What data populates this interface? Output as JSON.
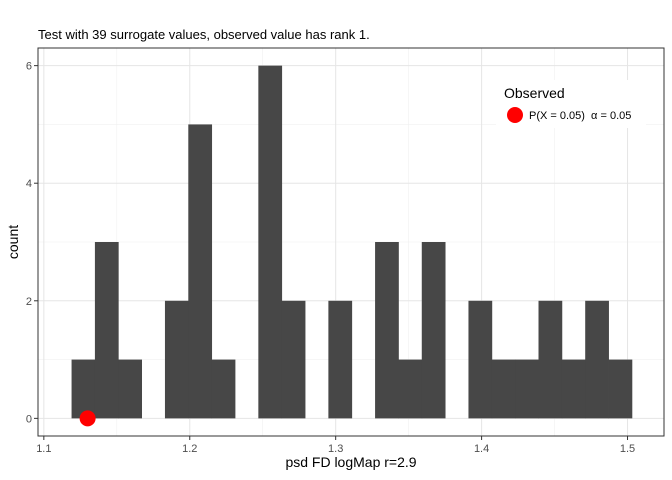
{
  "chart_data": {
    "type": "histogram",
    "title": "Test with 39 surrogate values, observed value has rank 1.",
    "xlabel": "psd FD logMap r=2.9",
    "ylabel": "count",
    "xlim": [
      1.096,
      1.525
    ],
    "ylim": [
      -0.3,
      6.3
    ],
    "x_ticks": [
      {
        "value": 1.1,
        "label": "1.1"
      },
      {
        "value": 1.2,
        "label": "1.2"
      },
      {
        "value": 1.3,
        "label": "1.3"
      },
      {
        "value": 1.4,
        "label": "1.4"
      },
      {
        "value": 1.5,
        "label": "1.5"
      }
    ],
    "y_ticks": [
      {
        "value": 0,
        "label": "0"
      },
      {
        "value": 2,
        "label": "2"
      },
      {
        "value": 4,
        "label": "4"
      },
      {
        "value": 6,
        "label": "6"
      }
    ],
    "grid": true,
    "bar_color": "#474747",
    "bins": [
      {
        "x0": 1.119,
        "x1": 1.135,
        "count": 1
      },
      {
        "x0": 1.135,
        "x1": 1.151,
        "count": 3
      },
      {
        "x0": 1.151,
        "x1": 1.167,
        "count": 1
      },
      {
        "x0": 1.167,
        "x1": 1.183,
        "count": 0
      },
      {
        "x0": 1.183,
        "x1": 1.199,
        "count": 2
      },
      {
        "x0": 1.199,
        "x1": 1.215,
        "count": 5
      },
      {
        "x0": 1.215,
        "x1": 1.231,
        "count": 1
      },
      {
        "x0": 1.231,
        "x1": 1.247,
        "count": 0
      },
      {
        "x0": 1.247,
        "x1": 1.263,
        "count": 6
      },
      {
        "x0": 1.263,
        "x1": 1.279,
        "count": 2
      },
      {
        "x0": 1.279,
        "x1": 1.295,
        "count": 0
      },
      {
        "x0": 1.295,
        "x1": 1.311,
        "count": 2
      },
      {
        "x0": 1.311,
        "x1": 1.327,
        "count": 0
      },
      {
        "x0": 1.327,
        "x1": 1.343,
        "count": 3
      },
      {
        "x0": 1.343,
        "x1": 1.359,
        "count": 1
      },
      {
        "x0": 1.359,
        "x1": 1.375,
        "count": 3
      },
      {
        "x0": 1.375,
        "x1": 1.391,
        "count": 0
      },
      {
        "x0": 1.391,
        "x1": 1.407,
        "count": 2
      },
      {
        "x0": 1.407,
        "x1": 1.423,
        "count": 1
      },
      {
        "x0": 1.423,
        "x1": 1.439,
        "count": 1
      },
      {
        "x0": 1.439,
        "x1": 1.455,
        "count": 2
      },
      {
        "x0": 1.455,
        "x1": 1.471,
        "count": 1
      },
      {
        "x0": 1.471,
        "x1": 1.487,
        "count": 2
      },
      {
        "x0": 1.487,
        "x1": 1.503,
        "count": 1
      }
    ],
    "observed": {
      "x": 1.13,
      "y": 0,
      "color": "#ff0000"
    },
    "legend": {
      "position": "top-right",
      "title": "Observed",
      "label": "P(X = 0.05)  α = 0.05"
    }
  }
}
